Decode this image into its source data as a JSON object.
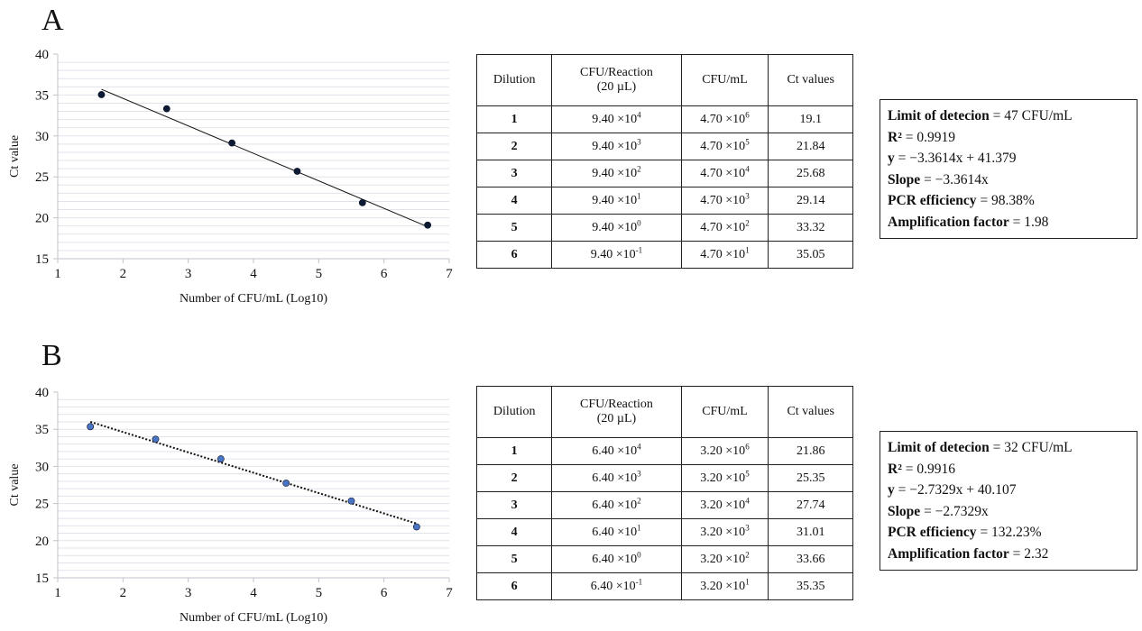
{
  "panels": [
    {
      "letter": "A",
      "chart_data": {
        "type": "scatter",
        "xlabel": "Number of CFU/mL (Log10)",
        "ylabel": "Ct value",
        "xlim": [
          1,
          7
        ],
        "ylim": [
          15,
          40
        ],
        "xticks": [
          1,
          2,
          3,
          4,
          5,
          6,
          7
        ],
        "yticks": [
          15,
          20,
          25,
          30,
          35,
          40
        ],
        "grid": true,
        "points": [
          {
            "x": 1.67,
            "y": 35.05
          },
          {
            "x": 2.67,
            "y": 33.32
          },
          {
            "x": 3.67,
            "y": 29.14
          },
          {
            "x": 4.67,
            "y": 25.68
          },
          {
            "x": 5.67,
            "y": 21.84
          },
          {
            "x": 6.67,
            "y": 19.1
          }
        ],
        "trendline": {
          "style": "solid",
          "x": [
            1.67,
            6.67
          ],
          "y": [
            35.7,
            18.9
          ]
        },
        "marker_color": "#0d1a33"
      },
      "table": {
        "headers": [
          "Dilution",
          "CFU/Reaction\n(20 µL)",
          "CFU/mL",
          "Ct values"
        ],
        "rows": [
          {
            "dilution": "1",
            "reaction_base": "9.40 ×10",
            "reaction_exp": "4",
            "cfu_base": "4.70 ×10",
            "cfu_exp": "6",
            "ct": "19.1"
          },
          {
            "dilution": "2",
            "reaction_base": "9.40 ×10",
            "reaction_exp": "3",
            "cfu_base": "4.70 ×10",
            "cfu_exp": "5",
            "ct": "21.84"
          },
          {
            "dilution": "3",
            "reaction_base": "9.40 ×10",
            "reaction_exp": "2",
            "cfu_base": "4.70 ×10",
            "cfu_exp": "4",
            "ct": "25.68"
          },
          {
            "dilution": "4",
            "reaction_base": "9.40 ×10",
            "reaction_exp": "1",
            "cfu_base": "4.70 ×10",
            "cfu_exp": "3",
            "ct": "29.14"
          },
          {
            "dilution": "5",
            "reaction_base": "9.40 ×10",
            "reaction_exp": "0",
            "cfu_base": "4.70 ×10",
            "cfu_exp": "2",
            "ct": "33.32"
          },
          {
            "dilution": "6",
            "reaction_base": "9.40 ×10",
            "reaction_exp": "-1",
            "cfu_base": "4.70 ×10",
            "cfu_exp": "1",
            "ct": "35.05"
          }
        ]
      },
      "stats": [
        {
          "label": "Limit of detecion",
          "value": " = 47 CFU/mL"
        },
        {
          "label": "R²",
          "value": " = 0.9919"
        },
        {
          "label": "y",
          "value": " = −3.3614x + 41.379"
        },
        {
          "label": "Slope",
          "value": " = −3.3614x"
        },
        {
          "label": "PCR efficiency",
          "value": " = 98.38%"
        },
        {
          "label": "Amplification factor",
          "value": " = 1.98"
        }
      ]
    },
    {
      "letter": "B",
      "chart_data": {
        "type": "scatter",
        "xlabel": "Number of CFU/mL (Log10)",
        "ylabel": "Ct value",
        "xlim": [
          1,
          7
        ],
        "ylim": [
          15,
          40
        ],
        "xticks": [
          1,
          2,
          3,
          4,
          5,
          6,
          7
        ],
        "yticks": [
          15,
          20,
          25,
          30,
          35,
          40
        ],
        "grid": true,
        "points": [
          {
            "x": 1.5,
            "y": 35.35
          },
          {
            "x": 2.5,
            "y": 33.66
          },
          {
            "x": 3.5,
            "y": 31.01
          },
          {
            "x": 4.5,
            "y": 27.74
          },
          {
            "x": 5.5,
            "y": 25.35
          },
          {
            "x": 6.5,
            "y": 21.86
          }
        ],
        "trendline": {
          "style": "dotted",
          "x": [
            1.5,
            6.5
          ],
          "y": [
            36.0,
            22.3
          ]
        },
        "marker_color": "#4a74c4"
      },
      "table": {
        "headers": [
          "Dilution",
          "CFU/Reaction\n(20 µL)",
          "CFU/mL",
          "Ct values"
        ],
        "rows": [
          {
            "dilution": "1",
            "reaction_base": "6.40 ×10",
            "reaction_exp": "4",
            "cfu_base": "3.20 ×10",
            "cfu_exp": "6",
            "ct": "21.86"
          },
          {
            "dilution": "2",
            "reaction_base": "6.40 ×10",
            "reaction_exp": "3",
            "cfu_base": "3.20 ×10",
            "cfu_exp": "5",
            "ct": "25.35"
          },
          {
            "dilution": "3",
            "reaction_base": "6.40 ×10",
            "reaction_exp": "2",
            "cfu_base": "3.20 ×10",
            "cfu_exp": "4",
            "ct": "27.74"
          },
          {
            "dilution": "4",
            "reaction_base": "6.40 ×10",
            "reaction_exp": "1",
            "cfu_base": "3.20 ×10",
            "cfu_exp": "3",
            "ct": "31.01"
          },
          {
            "dilution": "5",
            "reaction_base": "6.40 ×10",
            "reaction_exp": "0",
            "cfu_base": "3.20 ×10",
            "cfu_exp": "2",
            "ct": "33.66"
          },
          {
            "dilution": "6",
            "reaction_base": "6.40 ×10",
            "reaction_exp": "-1",
            "cfu_base": "3.20 ×10",
            "cfu_exp": "1",
            "ct": "35.35"
          }
        ]
      },
      "stats": [
        {
          "label": "Limit of detecion",
          "value": " = 32 CFU/mL"
        },
        {
          "label": "R²",
          "value": " = 0.9916"
        },
        {
          "label": "y",
          "value": " = −2.7329x + 40.107"
        },
        {
          "label": "Slope",
          "value": " = −2.7329x"
        },
        {
          "label": "PCR efficiency",
          "value": " = 132.23%"
        },
        {
          "label": "Amplification factor",
          "value": " = 2.32"
        }
      ]
    }
  ]
}
